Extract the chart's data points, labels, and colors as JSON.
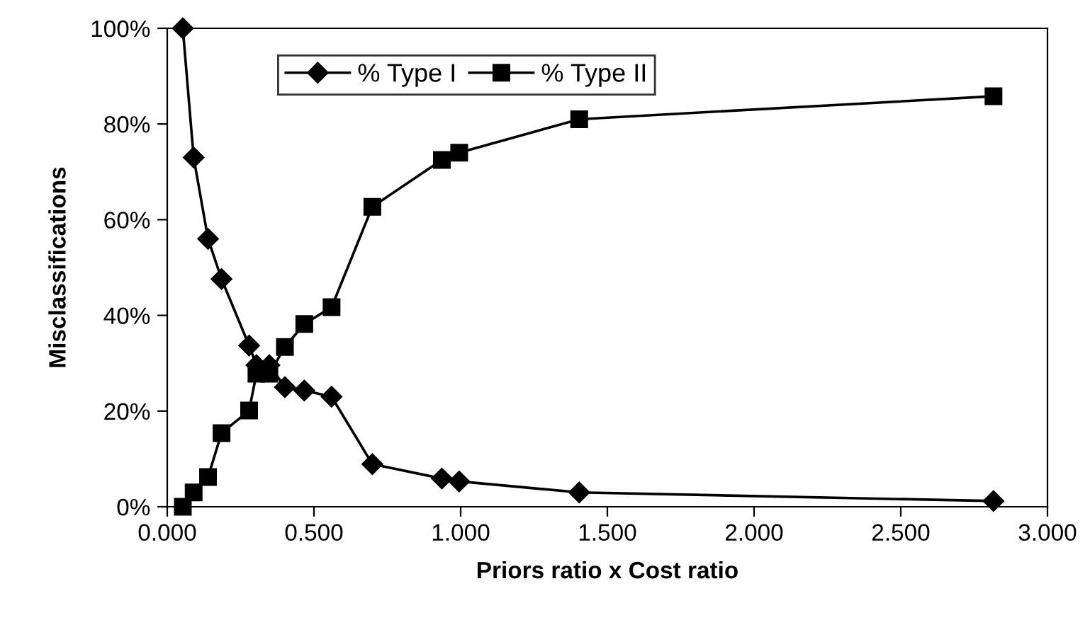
{
  "chart_data": {
    "type": "line",
    "xlabel": "Priors ratio x Cost ratio",
    "ylabel": "Misclassifications",
    "x": [
      0.053,
      0.09,
      0.139,
      0.185,
      0.279,
      0.304,
      0.348,
      0.401,
      0.467,
      0.56,
      0.699,
      0.936,
      0.995,
      1.404,
      2.816
    ],
    "series": [
      {
        "name": "% Type I",
        "color": "#000000",
        "marker": "diamond",
        "values": [
          100,
          73,
          56,
          47.6,
          33.7,
          29.6,
          29.6,
          25,
          24.3,
          23,
          8.9,
          5.9,
          5.3,
          3,
          1.2
        ]
      },
      {
        "name": "% Type II",
        "color": "#000000",
        "marker": "square",
        "values": [
          0,
          3,
          6.2,
          15.4,
          20.1,
          27.8,
          27.8,
          33.4,
          38.2,
          41.7,
          62.7,
          72.5,
          74,
          81,
          85.8
        ]
      }
    ],
    "xlim": [
      0,
      3
    ],
    "xticks": [
      {
        "value": 0,
        "label": "0.000"
      },
      {
        "value": 0.5,
        "label": "0.500"
      },
      {
        "value": 1,
        "label": "1.000"
      },
      {
        "value": 1.5,
        "label": "1.500"
      },
      {
        "value": 2,
        "label": "2.000"
      },
      {
        "value": 2.5,
        "label": "2.500"
      },
      {
        "value": 3,
        "label": "3.000"
      }
    ],
    "ylim": [
      0,
      100
    ],
    "yticks": [
      {
        "value": 0,
        "label": "0%"
      },
      {
        "value": 20,
        "label": "20%"
      },
      {
        "value": 40,
        "label": "40%"
      },
      {
        "value": 60,
        "label": "60%"
      },
      {
        "value": 80,
        "label": "80%"
      },
      {
        "value": 100,
        "label": "100%"
      }
    ],
    "grid": false,
    "legend": "top",
    "line_style": "solid"
  }
}
